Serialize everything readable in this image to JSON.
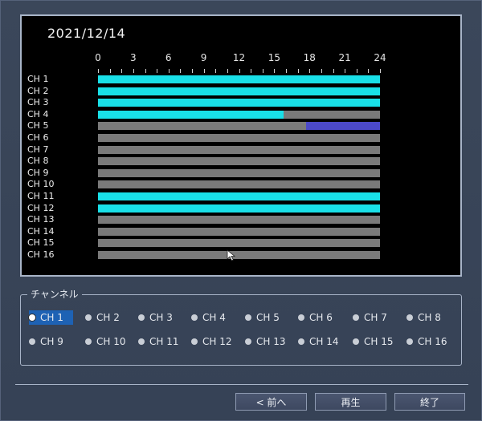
{
  "timeline": {
    "date": "2021/12/14",
    "hour_labels": [
      "0",
      "3",
      "6",
      "9",
      "12",
      "15",
      "18",
      "21",
      "24"
    ],
    "channels": [
      {
        "label": "CH 1",
        "segments": [
          {
            "start": 0,
            "end": 24,
            "type": "continuous"
          }
        ]
      },
      {
        "label": "CH 2",
        "segments": [
          {
            "start": 0,
            "end": 24,
            "type": "continuous"
          }
        ]
      },
      {
        "label": "CH 3",
        "segments": [
          {
            "start": 0,
            "end": 24,
            "type": "continuous"
          }
        ]
      },
      {
        "label": "CH 4",
        "segments": [
          {
            "start": 0,
            "end": 15.8,
            "type": "continuous"
          }
        ]
      },
      {
        "label": "CH 5",
        "segments": [
          {
            "start": 17.7,
            "end": 24,
            "type": "motion"
          }
        ]
      },
      {
        "label": "CH 6",
        "segments": []
      },
      {
        "label": "CH 7",
        "segments": []
      },
      {
        "label": "CH 8",
        "segments": []
      },
      {
        "label": "CH 9",
        "segments": []
      },
      {
        "label": "CH 10",
        "segments": []
      },
      {
        "label": "CH 11",
        "segments": [
          {
            "start": 0,
            "end": 24,
            "type": "continuous"
          }
        ]
      },
      {
        "label": "CH 12",
        "segments": [
          {
            "start": 0,
            "end": 24,
            "type": "continuous"
          }
        ]
      },
      {
        "label": "CH 13",
        "segments": []
      },
      {
        "label": "CH 14",
        "segments": []
      },
      {
        "label": "CH 15",
        "segments": []
      },
      {
        "label": "CH 16",
        "segments": []
      }
    ],
    "colors": {
      "continuous": "#19e0e8",
      "motion": "#4b49c8",
      "empty": "#7a7a7a"
    }
  },
  "channel_select": {
    "legend": "チャンネル",
    "selected": "CH 1",
    "options": [
      "CH 1",
      "CH 2",
      "CH 3",
      "CH 4",
      "CH 5",
      "CH 6",
      "CH 7",
      "CH 8",
      "CH 9",
      "CH 10",
      "CH 11",
      "CH 12",
      "CH 13",
      "CH 14",
      "CH 15",
      "CH 16"
    ]
  },
  "buttons": {
    "prev_label": "< 前へ",
    "play_label": "再生",
    "exit_label": "終了"
  }
}
